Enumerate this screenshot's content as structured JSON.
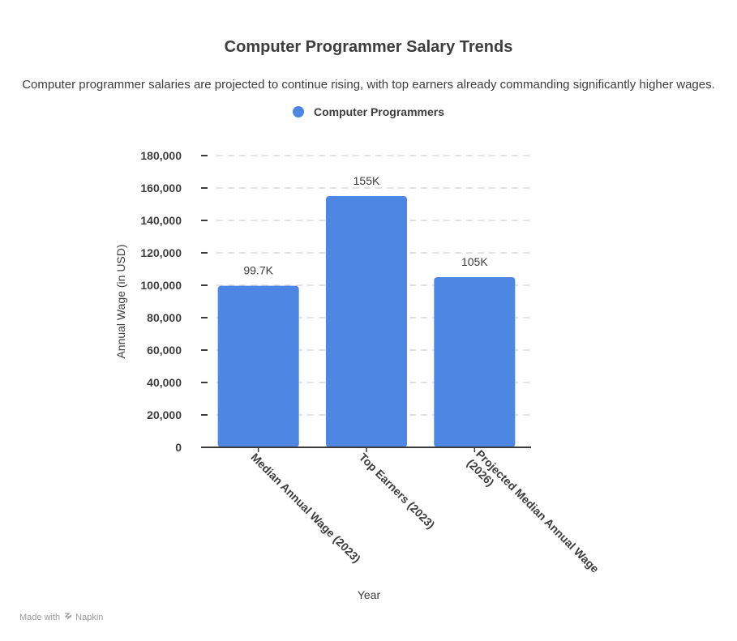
{
  "title": "Computer Programmer Salary Trends",
  "subtitle": "Computer programmer salaries are projected to continue rising, with top earners already commanding significantly higher wages.",
  "footer": {
    "made_with": "Made with",
    "brand": "Napkin"
  },
  "chart_data": {
    "type": "bar",
    "title": "Computer Programmer Salary Trends",
    "xlabel": "Year",
    "ylabel": "Annual Wage (in USD)",
    "ylim": [
      0,
      180000
    ],
    "yticks": [
      0,
      20000,
      40000,
      60000,
      80000,
      100000,
      120000,
      140000,
      160000,
      180000
    ],
    "ytick_labels": [
      "0",
      "20,000",
      "40,000",
      "60,000",
      "80,000",
      "100,000",
      "120,000",
      "140,000",
      "160,000",
      "180,000"
    ],
    "grid": true,
    "legend_position": "top-center",
    "categories": [
      "Median Annual Wage (2023)",
      "Top Earners (2023)",
      "Projected Median Annual Wage (2026)"
    ],
    "category_label_lines": [
      [
        "Median Annual Wage (2023)"
      ],
      [
        "Top Earners (2023)"
      ],
      [
        "Projected Median Annual Wage",
        "(2026)"
      ]
    ],
    "series": [
      {
        "name": "Computer Programmers",
        "color": "#4e86e4",
        "values": [
          99700,
          155000,
          105000
        ],
        "data_labels": [
          "99.7K",
          "155K",
          "105K"
        ]
      }
    ]
  }
}
